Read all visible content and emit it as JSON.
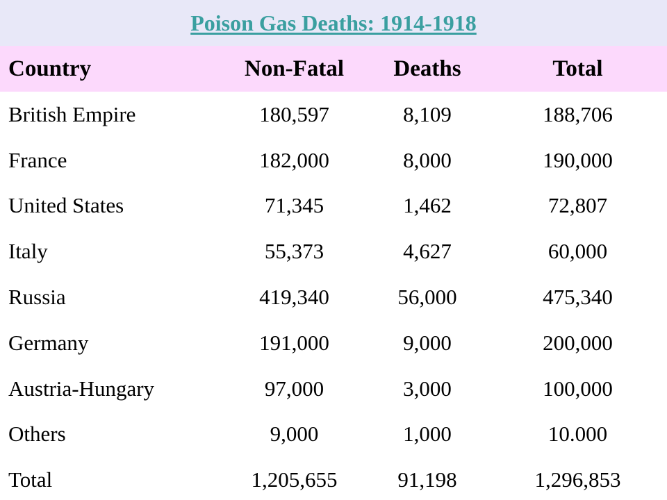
{
  "title": "Poison Gas Deaths: 1914-1918",
  "columns": [
    "Country",
    "Non-Fatal",
    "Deaths",
    "Total"
  ],
  "rows": [
    [
      "British Empire",
      "180,597",
      "8,109",
      "188,706"
    ],
    [
      "France",
      "182,000",
      "8,000",
      "190,000"
    ],
    [
      "United States",
      "71,345",
      "1,462",
      "72,807"
    ],
    [
      "Italy",
      "55,373",
      "4,627",
      "60,000"
    ],
    [
      "Russia",
      "419,340",
      "56,000",
      "475,340"
    ],
    [
      "Germany",
      "191,000",
      "9,000",
      "200,000"
    ],
    [
      "Austria-Hungary",
      "97,000",
      "3,000",
      "100,000"
    ],
    [
      "Others",
      "9,000",
      "1,000",
      "10.000"
    ],
    [
      "Total",
      "1,205,655",
      "91,198",
      "1,296,853"
    ]
  ],
  "colors": {
    "title_text": "#3a9fa0",
    "title_band": "#e8e8f8",
    "header_band": "#fcd9fc"
  }
}
